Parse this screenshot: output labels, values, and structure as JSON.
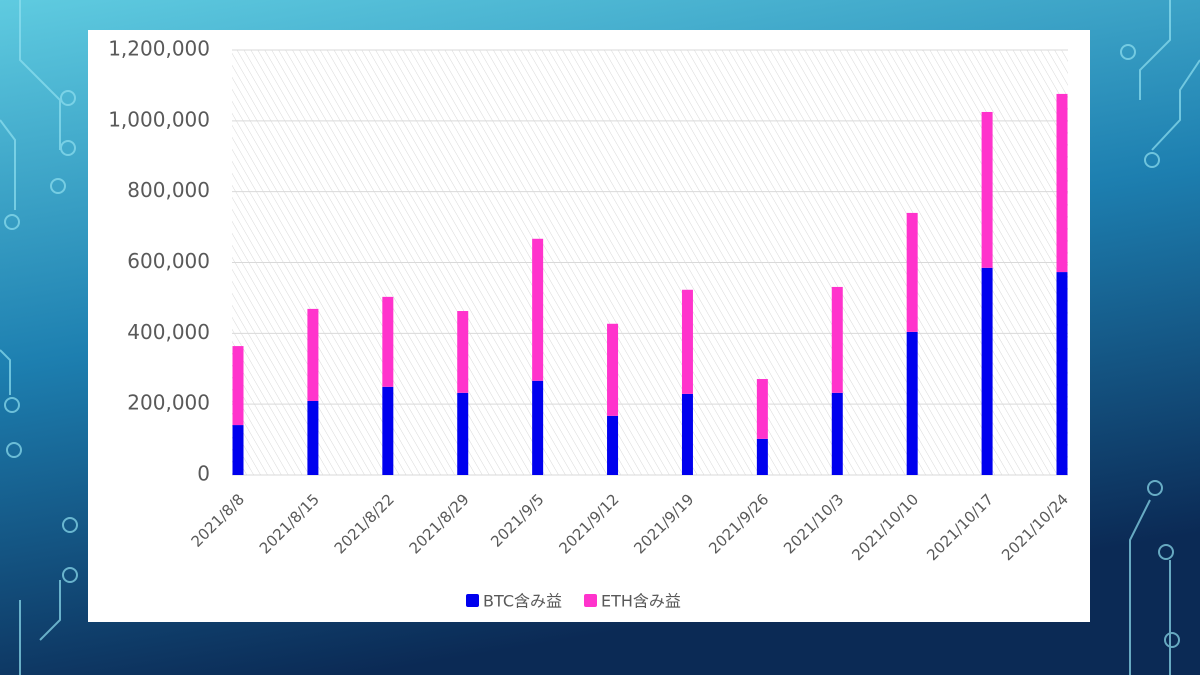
{
  "chart_data": {
    "type": "bar",
    "stacked": true,
    "categories": [
      "2021/8/8",
      "2021/8/15",
      "2021/8/22",
      "2021/8/29",
      "2021/9/5",
      "2021/9/12",
      "2021/9/19",
      "2021/9/26",
      "2021/10/3",
      "2021/10/10",
      "2021/10/17",
      "2021/10/24"
    ],
    "series": [
      {
        "name": "BTC含み益",
        "color": "#0000ee",
        "values": [
          141000,
          209000,
          249000,
          232000,
          266000,
          167000,
          229000,
          102000,
          232000,
          404000,
          585000,
          573000
        ]
      },
      {
        "name": "ETH含み益",
        "color": "#ff33cc",
        "values": [
          223000,
          260000,
          254000,
          231000,
          401000,
          260000,
          294000,
          169000,
          299000,
          336000,
          440000,
          503000
        ]
      }
    ],
    "ylim": [
      0,
      1200000
    ],
    "yticks": [
      0,
      {
        "value": 200000,
        "label": "200,000"
      },
      {
        "value": 400000,
        "label": "400,000"
      },
      {
        "value": 600000,
        "label": "600,000"
      },
      {
        "value": 800000,
        "label": "800,000"
      },
      {
        "value": 1000000,
        "label": "1,000,000"
      },
      {
        "value": 1200000,
        "label": "1,200,000"
      }
    ],
    "grid": true,
    "legend": "bottom"
  }
}
